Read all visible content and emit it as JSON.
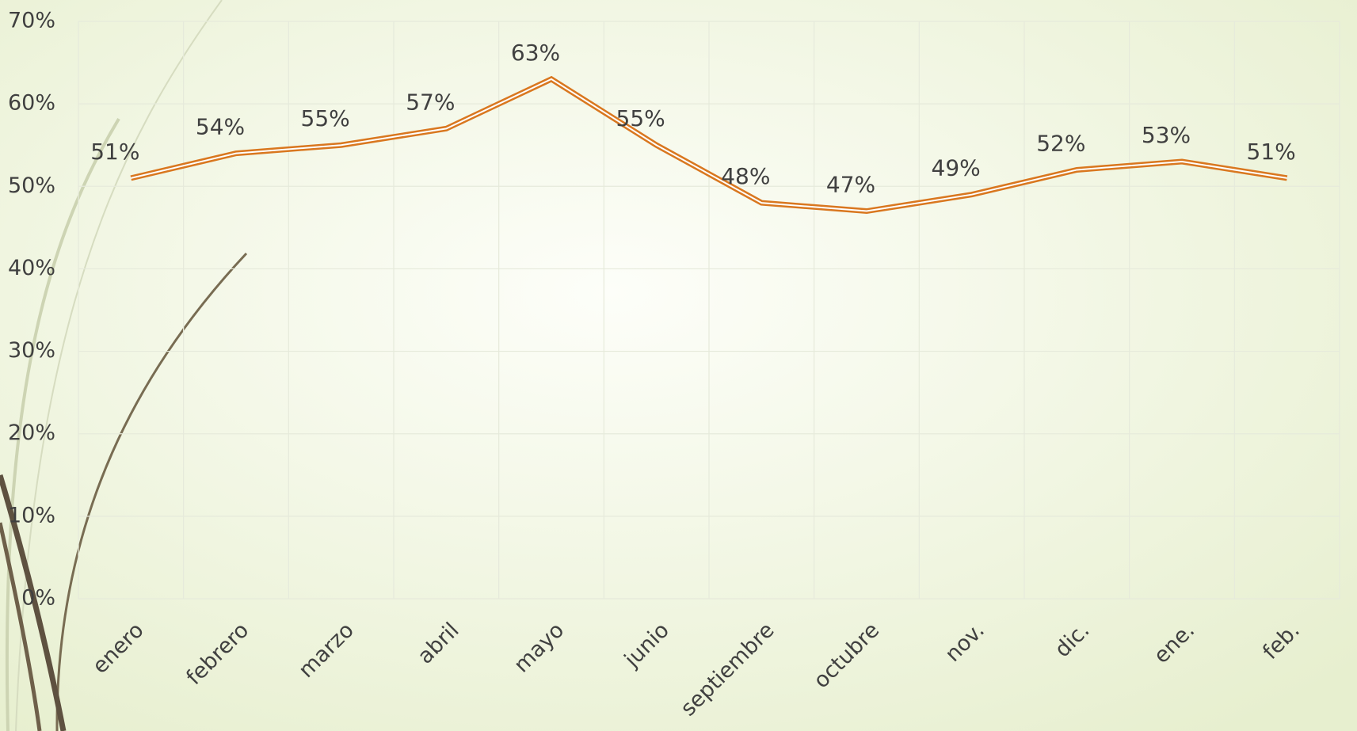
{
  "chart_data": {
    "type": "line",
    "categories": [
      "enero",
      "febrero",
      "marzo",
      "abril",
      "mayo",
      "junio",
      "septiembre",
      "octubre",
      "nov.",
      "dic.",
      "ene.",
      "feb."
    ],
    "series": [
      {
        "color": "#d9771f",
        "values": [
          51,
          54,
          55,
          57,
          63,
          55,
          48,
          47,
          49,
          52,
          53,
          51
        ],
        "value_labels": [
          "51%",
          "54%",
          "55%",
          "57%",
          "63%",
          "55%",
          "48%",
          "47%",
          "49%",
          "52%",
          "53%",
          "51%"
        ]
      }
    ],
    "ylim": [
      0,
      70
    ],
    "yticks": [
      {
        "value": 0,
        "label": "0%"
      },
      {
        "value": 10,
        "label": "10%"
      },
      {
        "value": 20,
        "label": "20%"
      },
      {
        "value": 30,
        "label": "30%"
      },
      {
        "value": 40,
        "label": "40%"
      },
      {
        "value": 50,
        "label": "50%"
      },
      {
        "value": 60,
        "label": "60%"
      },
      {
        "value": 70,
        "label": "70%"
      }
    ],
    "grid": true
  }
}
